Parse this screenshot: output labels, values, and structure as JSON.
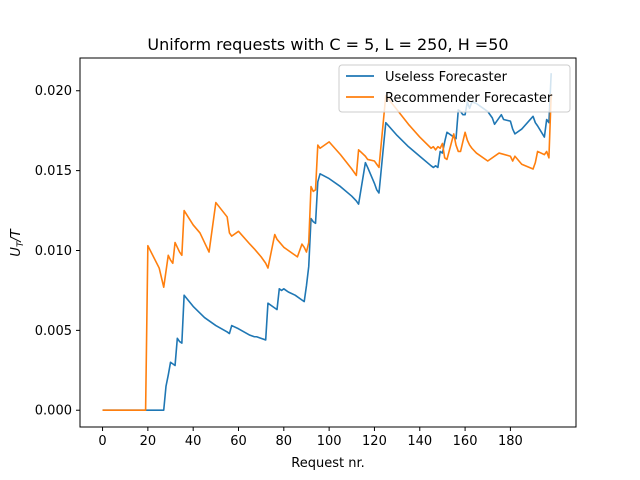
{
  "chart_data": {
    "type": "line",
    "title": "Uniform requests with C = 5, L = 250, H =50",
    "xlabel": "Request nr.",
    "ylabel": "U_T/T",
    "xlim": [
      -9.95,
      208.95
    ],
    "ylim": [
      -0.00105,
      0.02205
    ],
    "xticks": [
      0,
      20,
      40,
      60,
      80,
      100,
      120,
      140,
      160,
      180
    ],
    "xtick_labels": [
      "0",
      "20",
      "40",
      "60",
      "80",
      "100",
      "120",
      "140",
      "160",
      "180"
    ],
    "yticks": [
      0.0,
      0.005,
      0.01,
      0.015,
      0.02
    ],
    "ytick_labels": [
      "0.000",
      "0.005",
      "0.010",
      "0.015",
      "0.020"
    ],
    "grid": false,
    "legend": "top-right",
    "series": [
      {
        "name": "Useless Forecaster",
        "color": "#1f77b4",
        "x": [
          0,
          27,
          28,
          29,
          30,
          31,
          32,
          33,
          34,
          35,
          36,
          40,
          45,
          50,
          55,
          56,
          57,
          60,
          65,
          67,
          68,
          70,
          72,
          73,
          76,
          77,
          78,
          79,
          80,
          81,
          82,
          85,
          89,
          90,
          91,
          92,
          93,
          94,
          95,
          96,
          100,
          105,
          110,
          112,
          113,
          116,
          117,
          120,
          121,
          122,
          125,
          130,
          135,
          140,
          145,
          146,
          147,
          148,
          149,
          150,
          151,
          152,
          155,
          156,
          157,
          158,
          159,
          160,
          161,
          162,
          163,
          165,
          168,
          170,
          172,
          173,
          176,
          177,
          180,
          181,
          182,
          185,
          190,
          191,
          192,
          195,
          196,
          197,
          198
        ],
        "y": [
          0.0,
          0.0,
          0.0015,
          0.0022,
          0.003,
          0.0029,
          0.0028,
          0.0045,
          0.0043,
          0.0042,
          0.0072,
          0.0065,
          0.0058,
          0.0053,
          0.0049,
          0.0048,
          0.0053,
          0.0051,
          0.0047,
          0.0046,
          0.0046,
          0.0045,
          0.0044,
          0.0067,
          0.0064,
          0.0063,
          0.0076,
          0.0075,
          0.0076,
          0.0075,
          0.0074,
          0.0072,
          0.0068,
          0.0078,
          0.009,
          0.012,
          0.0118,
          0.0117,
          0.0143,
          0.0148,
          0.0145,
          0.014,
          0.0134,
          0.0131,
          0.0129,
          0.0155,
          0.0152,
          0.0142,
          0.0138,
          0.0136,
          0.018,
          0.0172,
          0.0165,
          0.0159,
          0.0153,
          0.0152,
          0.0153,
          0.0152,
          0.0162,
          0.0161,
          0.0168,
          0.0174,
          0.0171,
          0.017,
          0.0188,
          0.0187,
          0.0185,
          0.0185,
          0.0193,
          0.0189,
          0.0193,
          0.0192,
          0.0189,
          0.0187,
          0.0183,
          0.0179,
          0.0185,
          0.0182,
          0.0181,
          0.0176,
          0.0173,
          0.0176,
          0.0184,
          0.018,
          0.0178,
          0.0171,
          0.0182,
          0.018,
          0.0211
        ]
      },
      {
        "name": "Recommender Forecaster",
        "color": "#ff7f0e",
        "x": [
          0,
          19,
          20,
          25,
          27,
          29,
          30,
          31,
          32,
          33,
          34,
          35,
          36,
          40,
          43,
          47,
          50,
          55,
          56,
          57,
          60,
          65,
          67,
          70,
          72,
          73,
          76,
          77,
          80,
          81,
          82,
          85,
          86,
          88,
          89,
          90,
          91,
          92,
          93,
          94,
          95,
          96,
          100,
          105,
          110,
          112,
          113,
          116,
          117,
          120,
          121,
          122,
          125,
          130,
          135,
          140,
          145,
          146,
          147,
          148,
          149,
          150,
          151,
          152,
          155,
          156,
          157,
          158,
          159,
          160,
          161,
          162,
          163,
          165,
          170,
          175,
          180,
          181,
          182,
          185,
          190,
          191,
          192,
          195,
          196,
          197,
          198
        ],
        "y": [
          0.0,
          0.0,
          0.0103,
          0.0089,
          0.0077,
          0.0097,
          0.0094,
          0.0092,
          0.0105,
          0.0102,
          0.0099,
          0.0097,
          0.0125,
          0.0116,
          0.0111,
          0.0099,
          0.013,
          0.0121,
          0.0111,
          0.0109,
          0.0112,
          0.0104,
          0.0101,
          0.0096,
          0.0092,
          0.0089,
          0.011,
          0.0107,
          0.0102,
          0.0101,
          0.01,
          0.0097,
          0.0096,
          0.0104,
          0.0102,
          0.0099,
          0.0105,
          0.014,
          0.0137,
          0.0138,
          0.0166,
          0.0164,
          0.0168,
          0.016,
          0.0151,
          0.0147,
          0.0163,
          0.0159,
          0.0157,
          0.0156,
          0.0154,
          0.0152,
          0.0197,
          0.0188,
          0.0179,
          0.0171,
          0.0164,
          0.0165,
          0.0163,
          0.0165,
          0.0164,
          0.0167,
          0.0158,
          0.0157,
          0.0173,
          0.0166,
          0.0162,
          0.0162,
          0.0168,
          0.0174,
          0.0169,
          0.0166,
          0.0164,
          0.0161,
          0.0156,
          0.0161,
          0.0159,
          0.0156,
          0.0159,
          0.0154,
          0.0151,
          0.0155,
          0.0162,
          0.016,
          0.0162,
          0.0158,
          0.0198
        ]
      }
    ]
  }
}
